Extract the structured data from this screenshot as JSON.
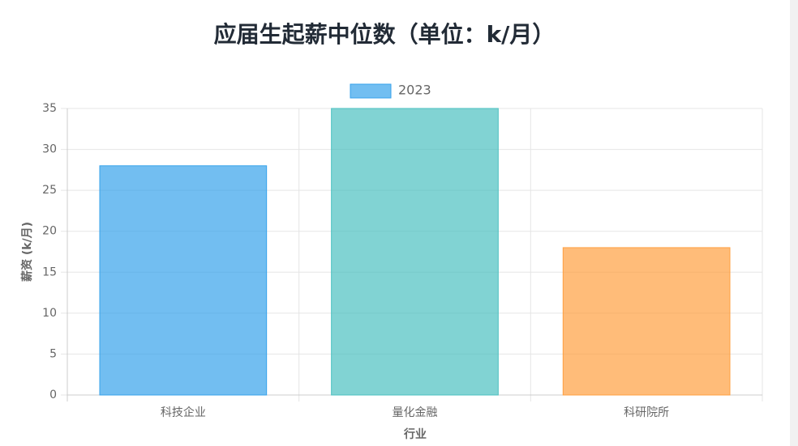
{
  "chart_data": {
    "type": "bar",
    "title": "应届生起薪中位数（单位：k/月）",
    "x_label": "行业",
    "y_label": "薪资 (k/月)",
    "categories": [
      "科技企业",
      "量化金融",
      "科研院所"
    ],
    "series": [
      {
        "name": "2023",
        "color": "#36a2eb",
        "colors": [
          "#36a2eb",
          "#4bc0c0",
          "#ff9f40"
        ],
        "values": [
          28,
          35,
          18
        ]
      }
    ],
    "ylim": [
      0,
      35
    ],
    "yticks": [
      0,
      5,
      10,
      15,
      20,
      25,
      30,
      35
    ],
    "grid": true,
    "legend": "top"
  }
}
